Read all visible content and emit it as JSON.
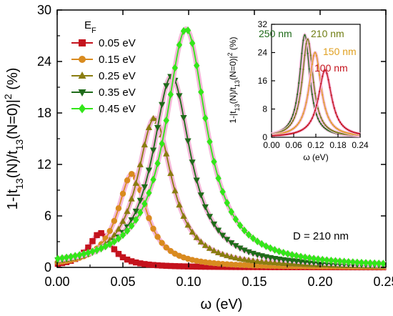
{
  "chart_data": [
    {
      "type": "line",
      "xlabel": "ω (eV)",
      "ylabel": "1-|t13(N)/t13(N=0)|² (%)",
      "ylabel_parts": {
        "a": "1-|t",
        "sub1": "13",
        "b": "(N)/t",
        "sub2": "13",
        "c": "(N=0)|",
        "sup": "2",
        "d": " (%)"
      },
      "xlim": [
        0.0,
        0.25
      ],
      "ylim": [
        0,
        30
      ],
      "xticks": [
        "0.00",
        "0.05",
        "0.10",
        "0.15",
        "0.20",
        "0.25"
      ],
      "yticks": [
        "0",
        "6",
        "12",
        "18",
        "24",
        "30"
      ],
      "legend_title": "E",
      "legend_title_sub": "F",
      "legend_position": "top-left",
      "annotation": "D = 210 nm",
      "series": [
        {
          "name": "0.05 eV",
          "color": "#c4131d",
          "marker": "square",
          "peak_x": 0.033,
          "peak_y": 4.0,
          "gamma": 0.011
        },
        {
          "name": "0.15 eV",
          "color": "#d98b1f",
          "marker": "circle",
          "peak_x": 0.057,
          "peak_y": 10.9,
          "gamma": 0.0135
        },
        {
          "name": "0.25 eV",
          "color": "#8a7d10",
          "marker": "triangle-up",
          "peak_x": 0.074,
          "peak_y": 17.4,
          "gamma": 0.016
        },
        {
          "name": "0.35 eV",
          "color": "#1f6b1a",
          "marker": "triangle-down",
          "peak_x": 0.087,
          "peak_y": 22.3,
          "gamma": 0.0175
        },
        {
          "name": "0.45 eV",
          "color": "#33e61a",
          "marker": "diamond",
          "peak_x": 0.098,
          "peak_y": 27.8,
          "gamma": 0.019
        }
      ]
    },
    {
      "type": "line",
      "xlabel": "ω (eV)",
      "ylabel": "1-|t13(N)/t13(N=0)|² (%)",
      "ylabel_parts": {
        "a": "1-|t",
        "sub1": "13",
        "b": "(N)/t",
        "sub2": "13",
        "c": "(N=0)|",
        "sup": "2",
        "d": " (%)"
      },
      "xlim": [
        0.0,
        0.24
      ],
      "ylim": [
        0,
        32
      ],
      "xticks": [
        "0.00",
        "0.06",
        "0.12",
        "0.18",
        "0.24"
      ],
      "yticks": [
        "0",
        "8",
        "16",
        "24",
        "32"
      ],
      "series": [
        {
          "name": "250 nm",
          "color": "#1f6b1a",
          "peak_x": 0.09,
          "peak_y": 29.0,
          "gamma": 0.017
        },
        {
          "name": "210 nm",
          "color": "#6f7d12",
          "peak_x": 0.098,
          "peak_y": 27.8,
          "gamma": 0.018
        },
        {
          "name": "150 nm",
          "color": "#e0a020",
          "peak_x": 0.118,
          "peak_y": 24.0,
          "gamma": 0.02
        },
        {
          "name": "100 nm",
          "color": "#c4131d",
          "peak_x": 0.145,
          "peak_y": 19.0,
          "gamma": 0.022
        }
      ]
    }
  ]
}
